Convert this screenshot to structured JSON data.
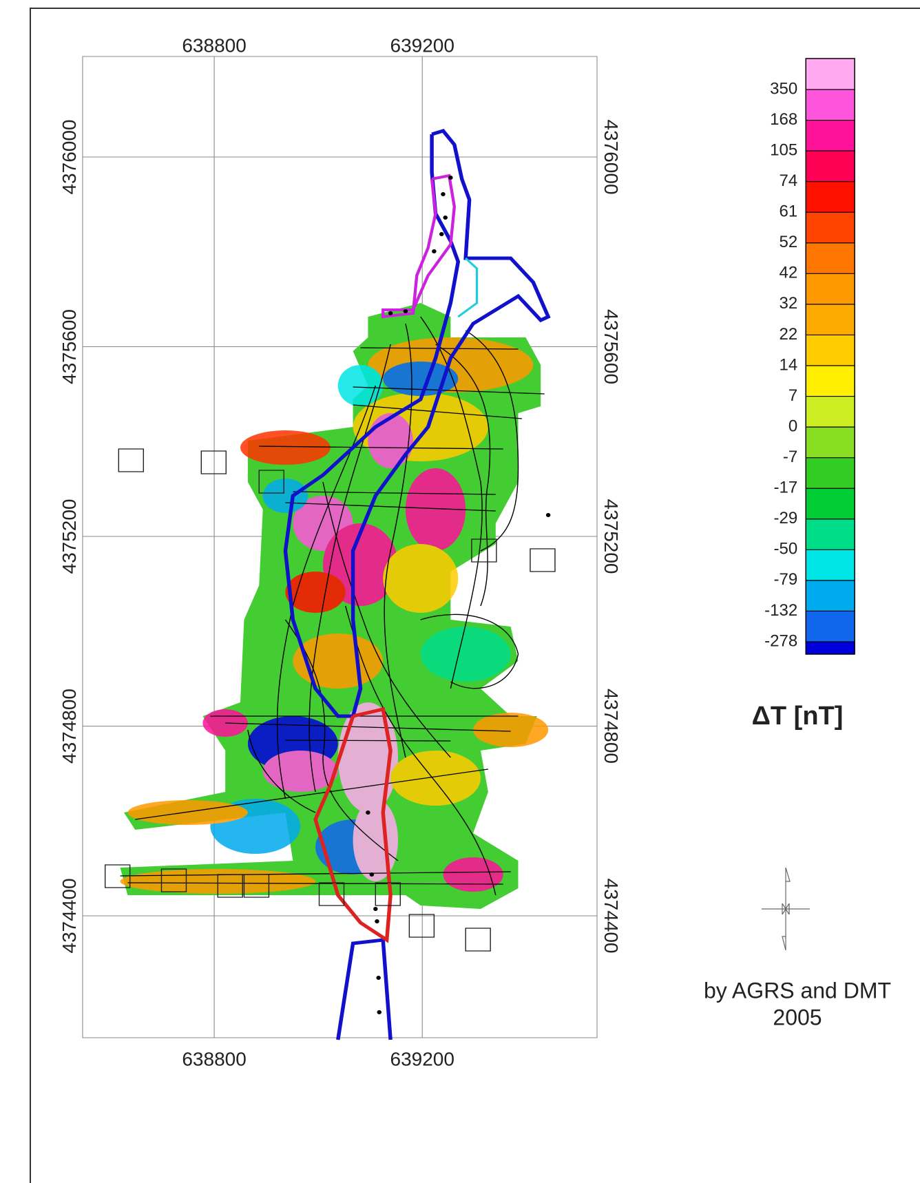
{
  "map": {
    "type": "map",
    "xticks": [
      638800,
      639200
    ],
    "yticks": [
      4376000,
      4375600,
      4375200,
      4374800,
      4374400
    ],
    "xlim": [
      638547,
      639536
    ],
    "ylim": [
      4374143,
      4376212
    ],
    "grid": true
  },
  "legend": {
    "title": "ΔT [nT]",
    "levels": [
      350,
      168,
      105,
      74,
      61,
      52,
      42,
      32,
      22,
      14,
      7,
      0,
      -7,
      -17,
      -29,
      -50,
      -79,
      -132,
      -278
    ],
    "colors": [
      "#ffaaf0",
      "#ff55dd",
      "#ff1199",
      "#ff0055",
      "#ff1100",
      "#ff4400",
      "#ff7700",
      "#ff9900",
      "#ffaa00",
      "#ffcc00",
      "#ffee00",
      "#ccee22",
      "#88dd22",
      "#33cc22",
      "#00cc33",
      "#00dd88",
      "#00e5e5",
      "#00aaee",
      "#1166ee",
      "#0000dd"
    ]
  },
  "credit": {
    "line1": "by AGRS and DMT",
    "line2": "2005"
  }
}
